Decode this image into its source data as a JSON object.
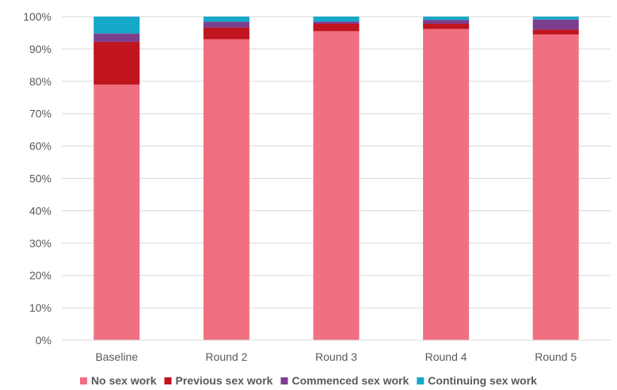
{
  "chart_data": {
    "type": "bar",
    "stacked": true,
    "categories": [
      "Baseline",
      "Round 2",
      "Round 3",
      "Round 4",
      "Round 5"
    ],
    "series": [
      {
        "name": "No sex work",
        "color": "#f07082",
        "values": [
          79,
          93,
          95.5,
          96.2,
          94.5
        ]
      },
      {
        "name": "Previous sex work",
        "color": "#c0141e",
        "values": [
          13.2,
          3.6,
          2.3,
          1.6,
          1.5
        ]
      },
      {
        "name": "Commenced sex work",
        "color": "#7b3f8e",
        "values": [
          2.6,
          1.8,
          0.7,
          1.2,
          3.1
        ]
      },
      {
        "name": "Continuing sex work",
        "color": "#15a9c9",
        "values": [
          5.2,
          1.6,
          1.5,
          1.0,
          0.9
        ]
      }
    ],
    "y_ticks": [
      "0%",
      "10%",
      "20%",
      "30%",
      "40%",
      "50%",
      "60%",
      "70%",
      "80%",
      "90%",
      "100%"
    ],
    "ylim": [
      0,
      100
    ],
    "grid": true,
    "legend_position": "bottom"
  }
}
